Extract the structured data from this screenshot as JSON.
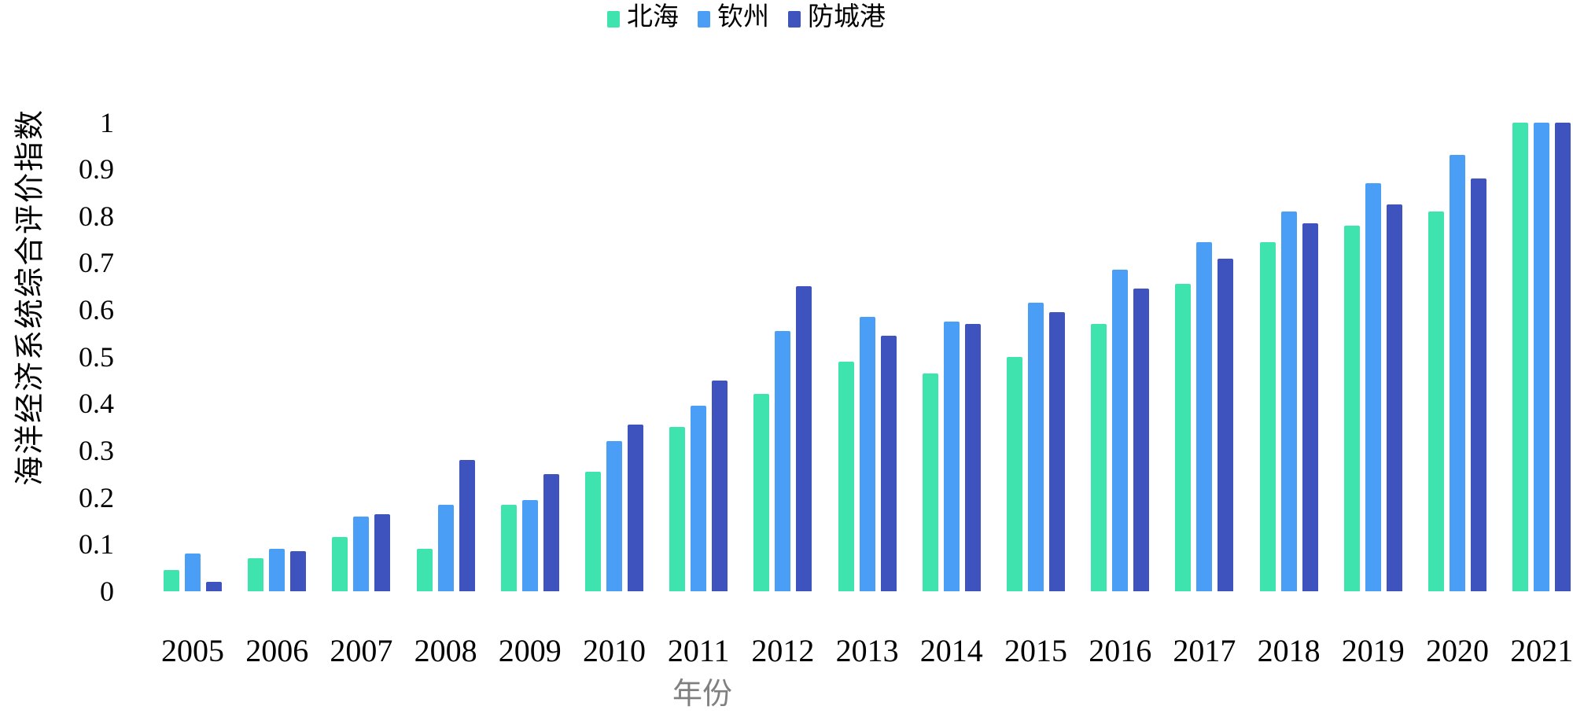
{
  "legend": {
    "position": "top",
    "items": [
      {
        "label": "北海",
        "color": "#3EE3AE"
      },
      {
        "label": "钦州",
        "color": "#4A9EF5"
      },
      {
        "label": "防城港",
        "color": "#3E53BD"
      }
    ]
  },
  "y_axis": {
    "title": "海洋经济系统综合评价指数",
    "tick_labels": [
      "0",
      "0.1",
      "0.2",
      "0.3",
      "0.4",
      "0.5",
      "0.6",
      "0.7",
      "0.8",
      "0.9",
      "1"
    ],
    "min": 0,
    "max": 1
  },
  "x_axis": {
    "title": "年份"
  },
  "chart_data": {
    "type": "bar",
    "title": "",
    "categories": [
      "2005",
      "2006",
      "2007",
      "2008",
      "2009",
      "2010",
      "2011",
      "2012",
      "2013",
      "2014",
      "2015",
      "2016",
      "2017",
      "2018",
      "2019",
      "2020",
      "2021"
    ],
    "series": [
      {
        "name": "北海",
        "color": "#3EE3AE",
        "values": [
          0.045,
          0.07,
          0.115,
          0.09,
          0.185,
          0.255,
          0.35,
          0.42,
          0.49,
          0.465,
          0.5,
          0.57,
          0.655,
          0.745,
          0.78,
          0.81,
          1.0
        ]
      },
      {
        "name": "钦州",
        "color": "#4A9EF5",
        "values": [
          0.08,
          0.09,
          0.16,
          0.185,
          0.195,
          0.32,
          0.395,
          0.555,
          0.585,
          0.575,
          0.615,
          0.685,
          0.745,
          0.81,
          0.87,
          0.93,
          1.0
        ]
      },
      {
        "name": "防城港",
        "color": "#3E53BD",
        "values": [
          0.02,
          0.085,
          0.165,
          0.28,
          0.25,
          0.355,
          0.45,
          0.65,
          0.545,
          0.57,
          0.595,
          0.645,
          0.71,
          0.785,
          0.825,
          0.88,
          1.0
        ]
      }
    ],
    "xlabel": "年份",
    "ylabel": "海洋经济系统综合评价指数",
    "ylim": [
      0,
      1
    ],
    "ytick_step": 0.1,
    "grid": false,
    "legend_position": "top"
  }
}
